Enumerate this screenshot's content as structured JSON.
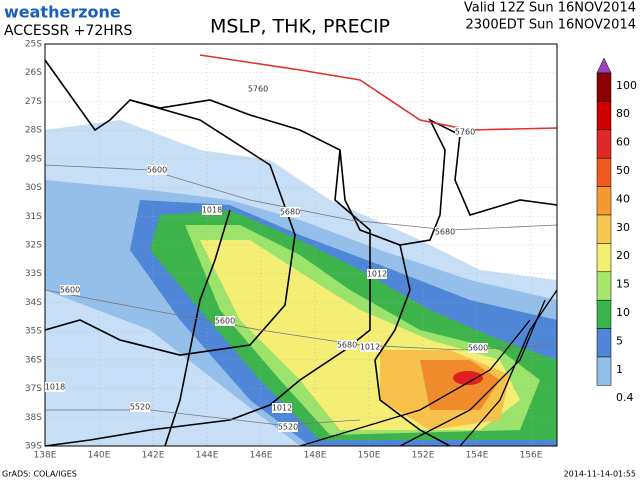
{
  "header": {
    "logo": "weatherzone",
    "model": "ACCESSR +72HRS",
    "title": "MSLP, THK, PRECIP",
    "valid": "Valid 12Z Sun 16NOV2014",
    "local": "2300EDT Sun 16NOV2014"
  },
  "map": {
    "lat_labels": [
      "25S",
      "26S",
      "27S",
      "28S",
      "29S",
      "30S",
      "31S",
      "32S",
      "33S",
      "34S",
      "35S",
      "36S",
      "37S",
      "38S",
      "39S"
    ],
    "lon_labels": [
      "138E",
      "140E",
      "142E",
      "144E",
      "146E",
      "148E",
      "150E",
      "152E",
      "154E",
      "156E"
    ],
    "contour_labels": [
      "5760",
      "5760",
      "5680",
      "5680",
      "5600",
      "5600",
      "5600",
      "5600",
      "5520",
      "5520",
      "1018",
      "1012",
      "1012",
      "1012",
      "1018",
      "5680"
    ]
  },
  "colorbar": {
    "labels": [
      "100",
      "80",
      "60",
      "50",
      "40",
      "30",
      "20",
      "15",
      "10",
      "5",
      "1",
      "0.4"
    ]
  },
  "footer": {
    "left": "GrADS: COLA/IGES",
    "right": "2014-11-14-01:55"
  }
}
